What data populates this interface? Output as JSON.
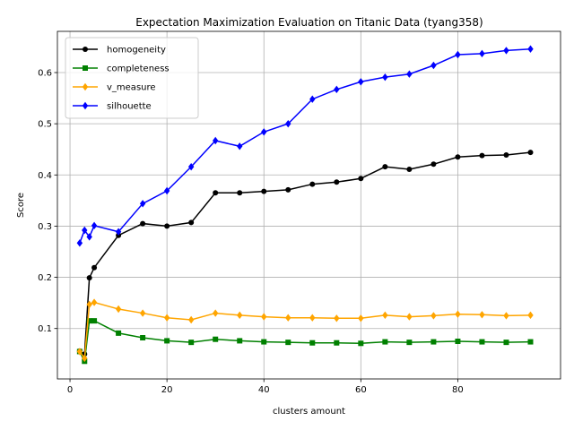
{
  "chart_data": {
    "type": "line",
    "title": "Expectation Maximization Evaluation on Titanic Data (tyang358)",
    "xlabel": "clusters amount",
    "ylabel": "Score",
    "xlim": [
      -2.6,
      101.2
    ],
    "ylim": [
      0.0015,
      0.6805
    ],
    "xticks": [
      0,
      20,
      40,
      60,
      80
    ],
    "yticks": [
      0.1,
      0.2,
      0.3,
      0.4,
      0.5,
      0.6
    ],
    "grid": true,
    "legend_position": "top-left",
    "x": [
      2,
      3,
      4,
      5,
      10,
      15,
      20,
      25,
      30,
      35,
      40,
      45,
      50,
      55,
      60,
      65,
      70,
      75,
      80,
      85,
      90,
      95
    ],
    "series": [
      {
        "name": "homogeneity",
        "color": "#000000",
        "marker": "circle",
        "values": [
          0.056,
          0.05,
          0.199,
          0.219,
          0.282,
          0.305,
          0.3,
          0.307,
          0.365,
          0.365,
          0.368,
          0.371,
          0.382,
          0.386,
          0.393,
          0.416,
          0.411,
          0.421,
          0.435,
          0.438,
          0.439,
          0.444
        ]
      },
      {
        "name": "completeness",
        "color": "#008000",
        "marker": "square",
        "values": [
          0.055,
          0.036,
          0.115,
          0.115,
          0.091,
          0.082,
          0.076,
          0.073,
          0.079,
          0.076,
          0.074,
          0.073,
          0.072,
          0.072,
          0.071,
          0.074,
          0.073,
          0.074,
          0.075,
          0.074,
          0.073,
          0.074
        ]
      },
      {
        "name": "v_measure",
        "color": "#ffa500",
        "marker": "diamond",
        "values": [
          0.055,
          0.042,
          0.147,
          0.151,
          0.138,
          0.13,
          0.121,
          0.117,
          0.13,
          0.126,
          0.123,
          0.121,
          0.121,
          0.12,
          0.12,
          0.126,
          0.123,
          0.125,
          0.128,
          0.127,
          0.125,
          0.126
        ]
      },
      {
        "name": "silhouette",
        "color": "#0000ff",
        "marker": "diamond",
        "values": [
          0.267,
          0.292,
          0.279,
          0.301,
          0.289,
          0.344,
          0.369,
          0.416,
          0.467,
          0.456,
          0.484,
          0.5,
          0.548,
          0.567,
          0.582,
          0.591,
          0.597,
          0.614,
          0.635,
          0.637,
          0.643,
          0.646
        ]
      }
    ]
  }
}
